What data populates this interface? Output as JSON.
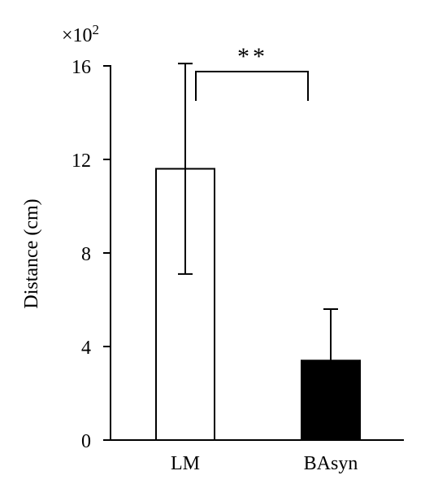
{
  "chart_data": {
    "type": "bar",
    "categories": [
      "LM",
      "BAsyn"
    ],
    "values": [
      11.6,
      3.4
    ],
    "error_upper": [
      16.1,
      5.6
    ],
    "error_lower": [
      7.1,
      null
    ],
    "fills": [
      "#ffffff",
      "#000000"
    ],
    "ylabel": "Distance (cm)",
    "yticks": [
      0,
      4,
      8,
      12,
      16
    ],
    "ylim": [
      0,
      16
    ],
    "multiplier_label": "×10",
    "multiplier_exponent": "2",
    "significance": {
      "label": "**",
      "between": [
        "LM",
        "BAsyn"
      ]
    },
    "grid": false,
    "legend": "none"
  }
}
